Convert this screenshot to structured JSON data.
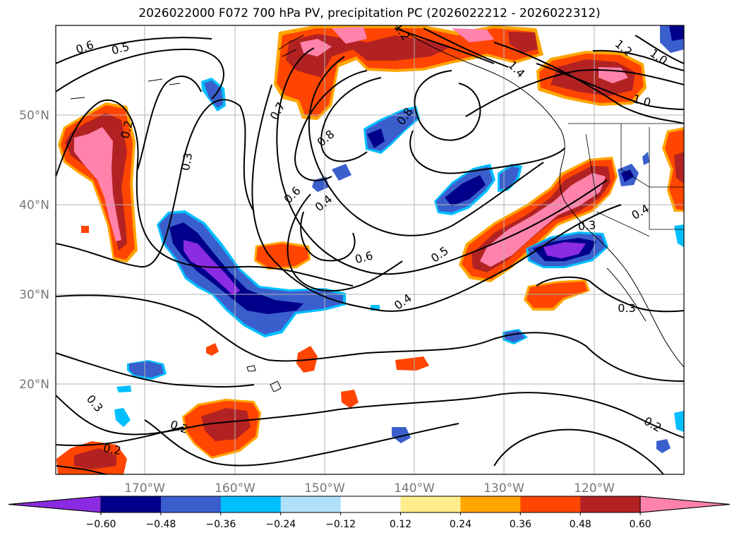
{
  "title": "2026022000 F072 700 hPa PV, precipitation PC (2026022212 - 2026022312)",
  "map": {
    "lat_labels": [
      "50°N",
      "40°N",
      "30°N",
      "20°N"
    ],
    "lon_labels": [
      "170°W",
      "160°W",
      "150°W",
      "140°W",
      "130°W",
      "120°W"
    ],
    "contour_labels": [
      "0.6",
      "0.5",
      "0.2",
      "0.3",
      "0.7",
      "0.8",
      "0.8",
      "0.6",
      "0.4",
      "0.6",
      "0.5",
      "0.4",
      "0.3",
      "0.4",
      "0.3",
      "0.3",
      "0.2",
      "0.2",
      "0.2",
      "1.2",
      "1.4",
      "1.2",
      "1.0",
      "1.0"
    ]
  },
  "colorbar": {
    "ticks": [
      "−0.60",
      "−0.48",
      "−0.36",
      "−0.24",
      "−0.12",
      "0.12",
      "0.24",
      "0.36",
      "0.48",
      "0.60"
    ],
    "colors": [
      "#8b2be2",
      "#00008b",
      "#3a5fcd",
      "#00bfff",
      "#b0e0fa",
      "#ffffff",
      "#ffec8b",
      "#ffa500",
      "#ff4500",
      "#b22222",
      "#ff82ab"
    ]
  }
}
